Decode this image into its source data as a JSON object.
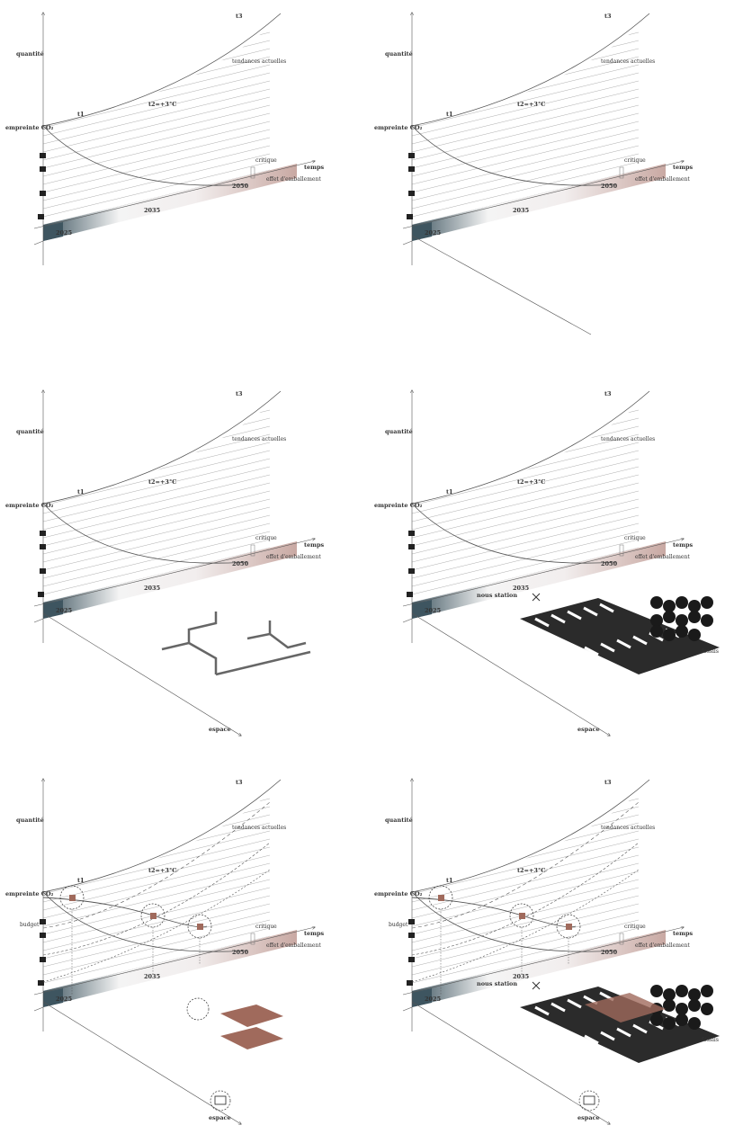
{
  "panels": [
    {
      "t3": "t3",
      "quantity": "quantité",
      "trend": "tendances actuelles",
      "t2": "t2=+3°C",
      "t1": "t1",
      "footprint": "empreinte CO₂",
      "time": "temps",
      "critical": "critique",
      "y2050": "2050",
      "runaway": "effet d'emballement",
      "y2035": "2035",
      "y2025": "2025"
    },
    {
      "t3": "t3",
      "quantity": "quantité",
      "trend": "tendances actuelles",
      "t2": "t2=+3°C",
      "t1": "t1",
      "footprint": "empreinte CO₂",
      "time": "temps",
      "critical": "critique",
      "y2050": "2050",
      "runaway": "effet d'emballement",
      "y2035": "2035",
      "y2025": "2025"
    },
    {
      "t3": "t3",
      "quantity": "quantité",
      "trend": "tendances actuelles",
      "t2": "t2=+3°C",
      "t1": "t1",
      "footprint": "empreinte CO₂",
      "time": "temps",
      "critical": "critique",
      "y2050": "2050",
      "runaway": "effet d'emballement",
      "y2035": "2035",
      "y2025": "2025",
      "space": "espace"
    },
    {
      "t3": "t3",
      "quantity": "quantité",
      "trend": "tendances actuelles",
      "t2": "t2=+3°C",
      "t1": "t1",
      "footprint": "empreinte CO₂",
      "time": "temps",
      "critical": "critique",
      "y2050": "2050",
      "runaway": "effet d'emballement",
      "y2035": "2035",
      "y2025": "2025",
      "space": "espace",
      "station": "nous station",
      "forest": "fossils"
    },
    {
      "t3": "t3",
      "quantity": "quantité",
      "trend": "tendances actuelles",
      "t2": "t2=+3°C",
      "t1": "t1",
      "footprint": "empreinte CO₂",
      "time": "temps",
      "critical": "critique",
      "y2050": "2050",
      "runaway": "effet d'emballement",
      "y2035": "2035",
      "y2025": "2025",
      "space": "espace",
      "budget": "budget"
    },
    {
      "t3": "t3",
      "quantity": "quantité",
      "trend": "tendances actuelles",
      "t2": "t2=+3°C",
      "t1": "t1",
      "footprint": "empreinte CO₂",
      "time": "temps",
      "critical": "critique",
      "y2050": "2050",
      "runaway": "effet d'emballement",
      "y2035": "2035",
      "y2025": "2025",
      "space": "espace",
      "budget": "budget",
      "station": "nous station",
      "forest": "fossils"
    }
  ]
}
